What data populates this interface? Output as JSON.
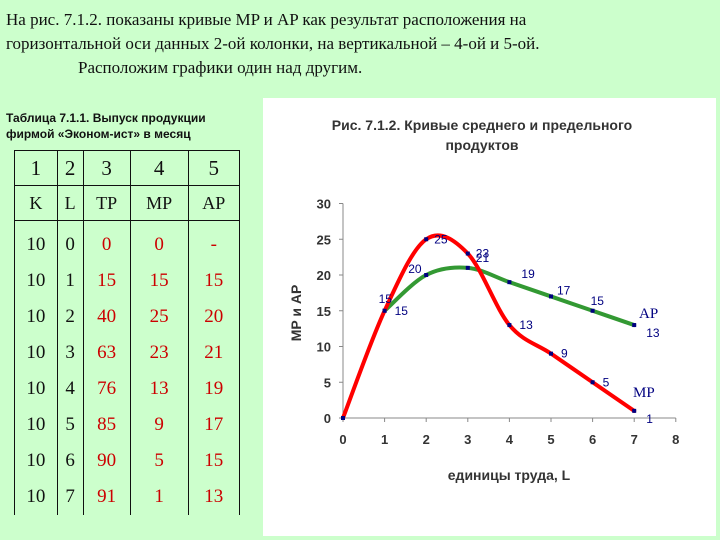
{
  "intro": {
    "line1": "На рис. 7.1.2. показаны кривые MP и AP как результат расположения на",
    "line2": "горизонтальной оси данных 2-ой колонки, на вертикальной – 4-ой и 5-ой.",
    "line3": "Расположим графики один над другим."
  },
  "table": {
    "caption_line1": "Таблица 7.1.1. Выпуск продукции",
    "caption_line2": "фирмой «Эконом-ист» в месяц",
    "col_numbers": [
      "1",
      "2",
      "3",
      "4",
      "5"
    ],
    "headers": [
      "K",
      "L",
      "TP",
      "MP",
      "AP"
    ],
    "rows": [
      [
        "10",
        "0",
        "0",
        "0",
        "-"
      ],
      [
        "10",
        "1",
        "15",
        "15",
        "15"
      ],
      [
        "10",
        "2",
        "40",
        "25",
        "20"
      ],
      [
        "10",
        "3",
        "63",
        "23",
        "21"
      ],
      [
        "10",
        "4",
        "76",
        "13",
        "19"
      ],
      [
        "10",
        "5",
        "85",
        "9",
        "17"
      ],
      [
        "10",
        "6",
        "90",
        "5",
        "15"
      ],
      [
        "10",
        "7",
        "91",
        "1",
        "13"
      ]
    ]
  },
  "chart_data": {
    "type": "line",
    "title_line1": "Рис. 7.1.2. Кривые среднего и предельного",
    "title_line2": "продуктов",
    "xlabel": "единицы труда, L",
    "ylabel": "MP и AP",
    "xlim": [
      0,
      8
    ],
    "ylim": [
      0,
      30
    ],
    "xticks": [
      "0",
      "1",
      "2",
      "3",
      "4",
      "5",
      "6",
      "7",
      "8"
    ],
    "yticks": [
      "0",
      "5",
      "10",
      "15",
      "20",
      "25",
      "30"
    ],
    "series": [
      {
        "name": "MP",
        "color": "#ff0000",
        "x": [
          0,
          1,
          2,
          3,
          4,
          5,
          6,
          7
        ],
        "y": [
          0,
          15,
          25,
          23,
          13,
          9,
          5,
          1
        ],
        "labels": [
          "",
          "15",
          "25",
          "23",
          "13",
          "9",
          "5",
          "1"
        ]
      },
      {
        "name": "AP",
        "color": "#339933",
        "x": [
          1,
          2,
          3,
          4,
          5,
          6,
          7
        ],
        "y": [
          15,
          20,
          21,
          19,
          17,
          15,
          13
        ],
        "labels": [
          "15",
          "20",
          "21",
          "19",
          "17",
          "15",
          "13"
        ]
      }
    ],
    "curve_labels": {
      "AP": "AP",
      "MP": "MP"
    },
    "colors": {
      "label_text": "#000080",
      "markers": "#000080"
    },
    "grid": false
  }
}
